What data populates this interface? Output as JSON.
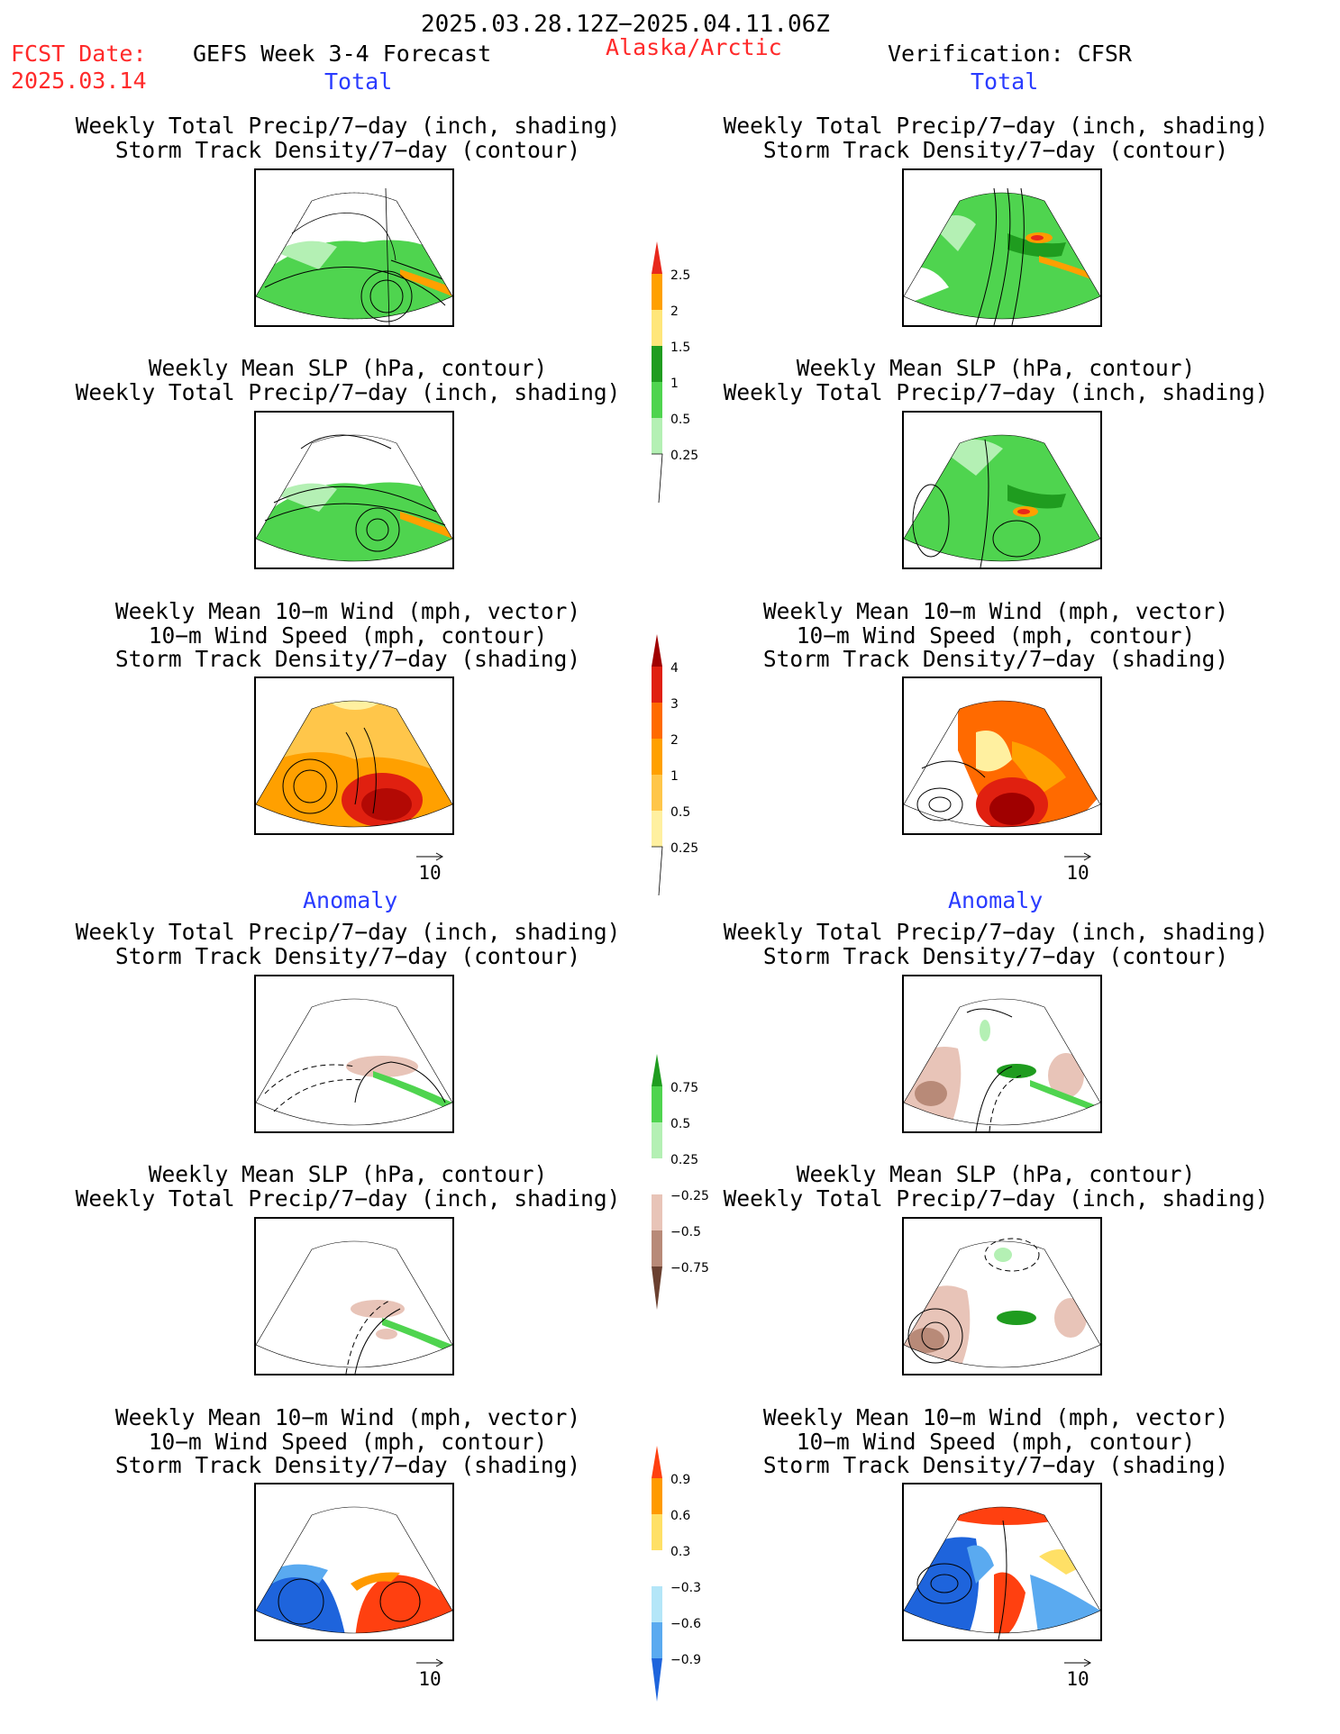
{
  "header": {
    "period": "2025.03.28.12Z−2025.04.11.06Z",
    "fcst_label": "FCST Date:",
    "fcst_date": "2025.03.14",
    "product": "GEFS Week 3-4 Forecast",
    "region": "Alaska/Arctic",
    "verification": "Verification: CFSR"
  },
  "sections": {
    "total": "Total",
    "anomaly": "Anomaly"
  },
  "titles": {
    "precip_storm": [
      "Weekly Total Precip/7−day (inch, shading)",
      "Storm Track Density/7−day (contour)"
    ],
    "slp_precip": [
      "Weekly Mean SLP (hPa, contour)",
      "Weekly Total Precip/7−day (inch, shading)"
    ],
    "wind": [
      "Weekly Mean 10−m Wind (mph, vector)",
      "10−m Wind Speed (mph, contour)",
      "Storm Track Density/7−day (shading)"
    ]
  },
  "vector_scale": "10",
  "colorbars": {
    "precip_total": {
      "ticks": [
        "2.5",
        "2",
        "1.5",
        "1",
        "0.5",
        "0.25"
      ],
      "colors": [
        "#e8281c",
        "#ffa000",
        "#ffe67a",
        "#1f9c1f",
        "#4fd44f",
        "#b4f0b4"
      ]
    },
    "storm_total": {
      "ticks": [
        "4",
        "3",
        "2",
        "1",
        "0.5",
        "0.25"
      ],
      "colors": [
        "#a00000",
        "#e02010",
        "#ff6a00",
        "#ffa000",
        "#ffc64a",
        "#fff0a0"
      ]
    },
    "precip_anom": {
      "ticks": [
        "0.75",
        "0.5",
        "0.25",
        "−0.25",
        "−0.5",
        "−0.75"
      ],
      "colors": [
        "#1f9c1f",
        "#4fd44f",
        "#b4f0b4",
        "#ffffff",
        "#e8c4b8",
        "#b88a78",
        "#6a4030"
      ]
    },
    "storm_anom": {
      "ticks": [
        "0.9",
        "0.6",
        "0.3",
        "−0.3",
        "−0.6",
        "−0.9"
      ],
      "colors": [
        "#ff4010",
        "#ff9a00",
        "#ffe066",
        "#ffffff",
        "#b4e6f8",
        "#5aaaf0",
        "#1e64dc"
      ]
    }
  }
}
